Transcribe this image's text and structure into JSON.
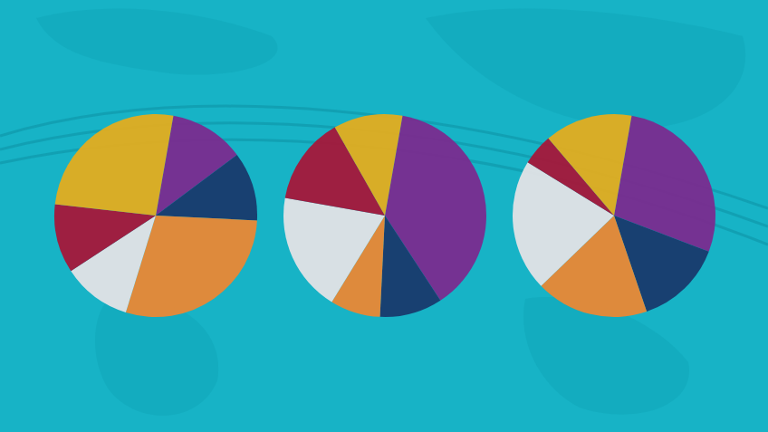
{
  "chart_data": [
    {
      "type": "pie",
      "values": [
        12,
        11,
        29,
        11,
        11,
        26
      ],
      "colors": [
        "#7a2b8f",
        "#183a6d",
        "#e98835",
        "#e3e3e6",
        "#a5173a",
        "#e3ad1f"
      ]
    },
    {
      "type": "pie",
      "values": [
        38,
        10,
        8,
        19,
        14,
        11
      ],
      "colors": [
        "#7a2b8f",
        "#183a6d",
        "#e98835",
        "#e3e3e6",
        "#a5173a",
        "#e3ad1f"
      ]
    },
    {
      "type": "pie",
      "values": [
        28,
        14,
        18,
        21,
        5,
        14
      ],
      "colors": [
        "#7a2b8f",
        "#183a6d",
        "#e98835",
        "#e3e3e6",
        "#a5173a",
        "#e3ad1f"
      ]
    }
  ]
}
